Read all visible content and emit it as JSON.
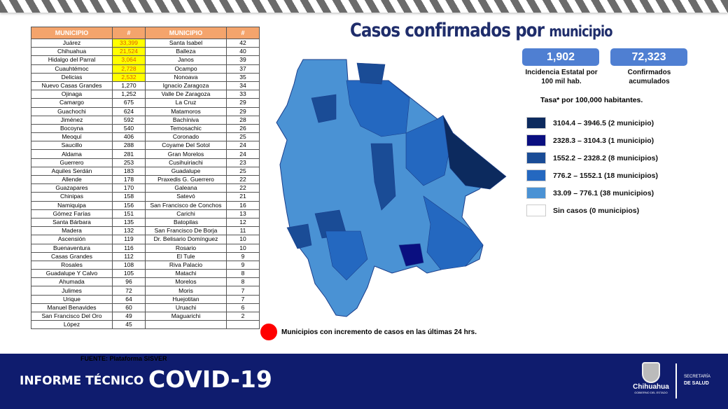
{
  "table": {
    "headers": [
      "MUNICIPIO",
      "#",
      "MUNICIPIO",
      "#"
    ],
    "left": [
      [
        "Juárez",
        "33,399"
      ],
      [
        "Chihuahua",
        "21,524"
      ],
      [
        "Hidalgo del Parral",
        "3,064"
      ],
      [
        "Cuauhtémoc",
        "2,728"
      ],
      [
        "Delicias",
        "2,532"
      ],
      [
        "Nuevo Casas Grandes",
        "1,270"
      ],
      [
        "Ojinaga",
        "1,252"
      ],
      [
        "Camargo",
        "675"
      ],
      [
        "Guachochi",
        "624"
      ],
      [
        "Jiménez",
        "592"
      ],
      [
        "Bocoyna",
        "540"
      ],
      [
        "Meoquí",
        "406"
      ],
      [
        "Saucillo",
        "288"
      ],
      [
        "Aldama",
        "281"
      ],
      [
        "Guerrero",
        "253"
      ],
      [
        "Aquiles Serdán",
        "183"
      ],
      [
        "Allende",
        "178"
      ],
      [
        "Guazapares",
        "170"
      ],
      [
        "Chinipas",
        "158"
      ],
      [
        "Namiquipa",
        "156"
      ],
      [
        "Gómez Farías",
        "151"
      ],
      [
        "Santa Bárbara",
        "135"
      ],
      [
        "Madera",
        "132"
      ],
      [
        "Ascensión",
        "119"
      ],
      [
        "Buenaventura",
        "116"
      ],
      [
        "Casas Grandes",
        "112"
      ],
      [
        "Rosales",
        "108"
      ],
      [
        "Guadalupe Y Calvo",
        "105"
      ],
      [
        "Ahumada",
        "96"
      ],
      [
        "Julimes",
        "72"
      ],
      [
        "Urique",
        "64"
      ],
      [
        "Manuel Benavides",
        "60"
      ],
      [
        "San Francisco Del Oro",
        "49"
      ],
      [
        "López",
        "45"
      ]
    ],
    "right": [
      [
        "Santa Isabel",
        "42"
      ],
      [
        "Balleza",
        "40"
      ],
      [
        "Janos",
        "39"
      ],
      [
        "Ocampo",
        "37"
      ],
      [
        "Nonoava",
        "35"
      ],
      [
        "Ignacio Zaragoza",
        "34"
      ],
      [
        "Valle De Zaragoza",
        "33"
      ],
      [
        "La Cruz",
        "29"
      ],
      [
        "Matamoros",
        "29"
      ],
      [
        "Bachíniva",
        "28"
      ],
      [
        "Temosachic",
        "26"
      ],
      [
        "Coronado",
        "25"
      ],
      [
        "Coyame Del Sotol",
        "24"
      ],
      [
        "Gran Morelos",
        "24"
      ],
      [
        "Cusihuiriachi",
        "23"
      ],
      [
        "Guadalupe",
        "25"
      ],
      [
        "Praxedis G. Guerrero",
        "22"
      ],
      [
        "Galeana",
        "22"
      ],
      [
        "Satevó",
        "21"
      ],
      [
        "San Francisco de Conchos",
        "16"
      ],
      [
        "Carichi",
        "13"
      ],
      [
        "Batopilas",
        "12"
      ],
      [
        "San Francisco De Borja",
        "11"
      ],
      [
        "Dr. Belisario Domínguez",
        "10"
      ],
      [
        "Rosario",
        "10"
      ],
      [
        "El Tule",
        "9"
      ],
      [
        "Riva Palacio",
        "9"
      ],
      [
        "Matachi",
        "8"
      ],
      [
        "Morelos",
        "8"
      ],
      [
        "Moris",
        "7"
      ],
      [
        "Huejotitan",
        "7"
      ],
      [
        "Uruachi",
        "6"
      ],
      [
        "Maguarichi",
        "2"
      ]
    ],
    "highlight_color": "#ffff00"
  },
  "title": {
    "main": "Casos confirmados por ",
    "sub": "municipio"
  },
  "stats": [
    {
      "value": "1,902",
      "label": "Incidencia Estatal por 100 mil hab."
    },
    {
      "value": "72,323",
      "label": "Confirmados acumulados"
    }
  ],
  "tasa": "Tasa* por 100,000 habitantes.",
  "legend": [
    {
      "label": "3104.4 – 3946.5 (2 municipio)",
      "color": "#0c2a5e"
    },
    {
      "label": "2328.3  – 3104.3 (1 municipio)",
      "color": "#0a0f80"
    },
    {
      "label": "1552.2 – 2328.2 (8 municipios)",
      "color": "#1a4c96"
    },
    {
      "label": "776.2 – 1552.1 (18 municipios)",
      "color": "#2468c0"
    },
    {
      "label": " 33.09 – 776.1 (38 municipios)",
      "color": "#4a92d4"
    },
    {
      "label": "Sin casos (0 municipios)",
      "color": "#ffffff"
    }
  ],
  "red_label": "Municipios con incremento de casos en las últimas 24 hrs.",
  "fuente": "FUENTE: Plataforma SISVER",
  "footer": {
    "informe": "INFORME TÉCNICO",
    "covid": "COVID-19",
    "state": "Chihuahua",
    "gobierno": "GOBIERNO DEL ESTADO",
    "sec1": "SECRETARÍA",
    "sec2": "DE SALUD"
  }
}
